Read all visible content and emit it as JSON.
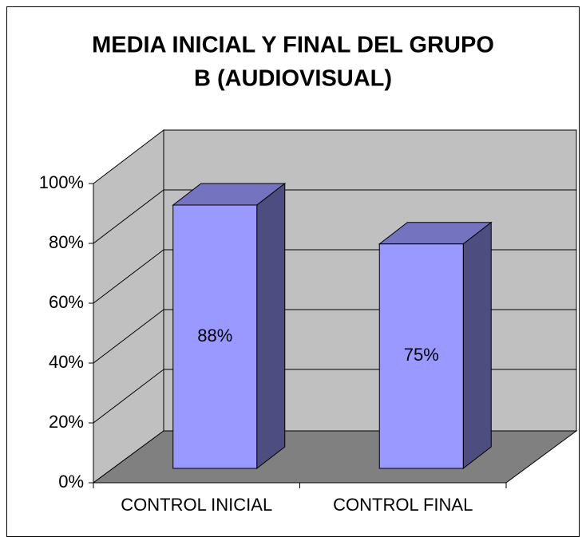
{
  "chart_data": {
    "type": "bar3d",
    "title": [
      "MEDIA INICIAL Y FINAL DEL GRUPO",
      "B (AUDIOVISUAL)"
    ],
    "categories": [
      "CONTROL INICIAL",
      "CONTROL FINAL"
    ],
    "values": [
      88,
      75
    ],
    "value_labels": [
      "88%",
      "75%"
    ],
    "color": "#9999ff",
    "ylim": [
      0,
      100
    ],
    "yticks": [
      {
        "value": 0,
        "label": "0%"
      },
      {
        "value": 20,
        "label": "20%"
      },
      {
        "value": 40,
        "label": "40%"
      },
      {
        "value": 60,
        "label": "60%"
      },
      {
        "value": 80,
        "label": "80%"
      },
      {
        "value": 100,
        "label": "100%"
      }
    ],
    "grid": true
  }
}
